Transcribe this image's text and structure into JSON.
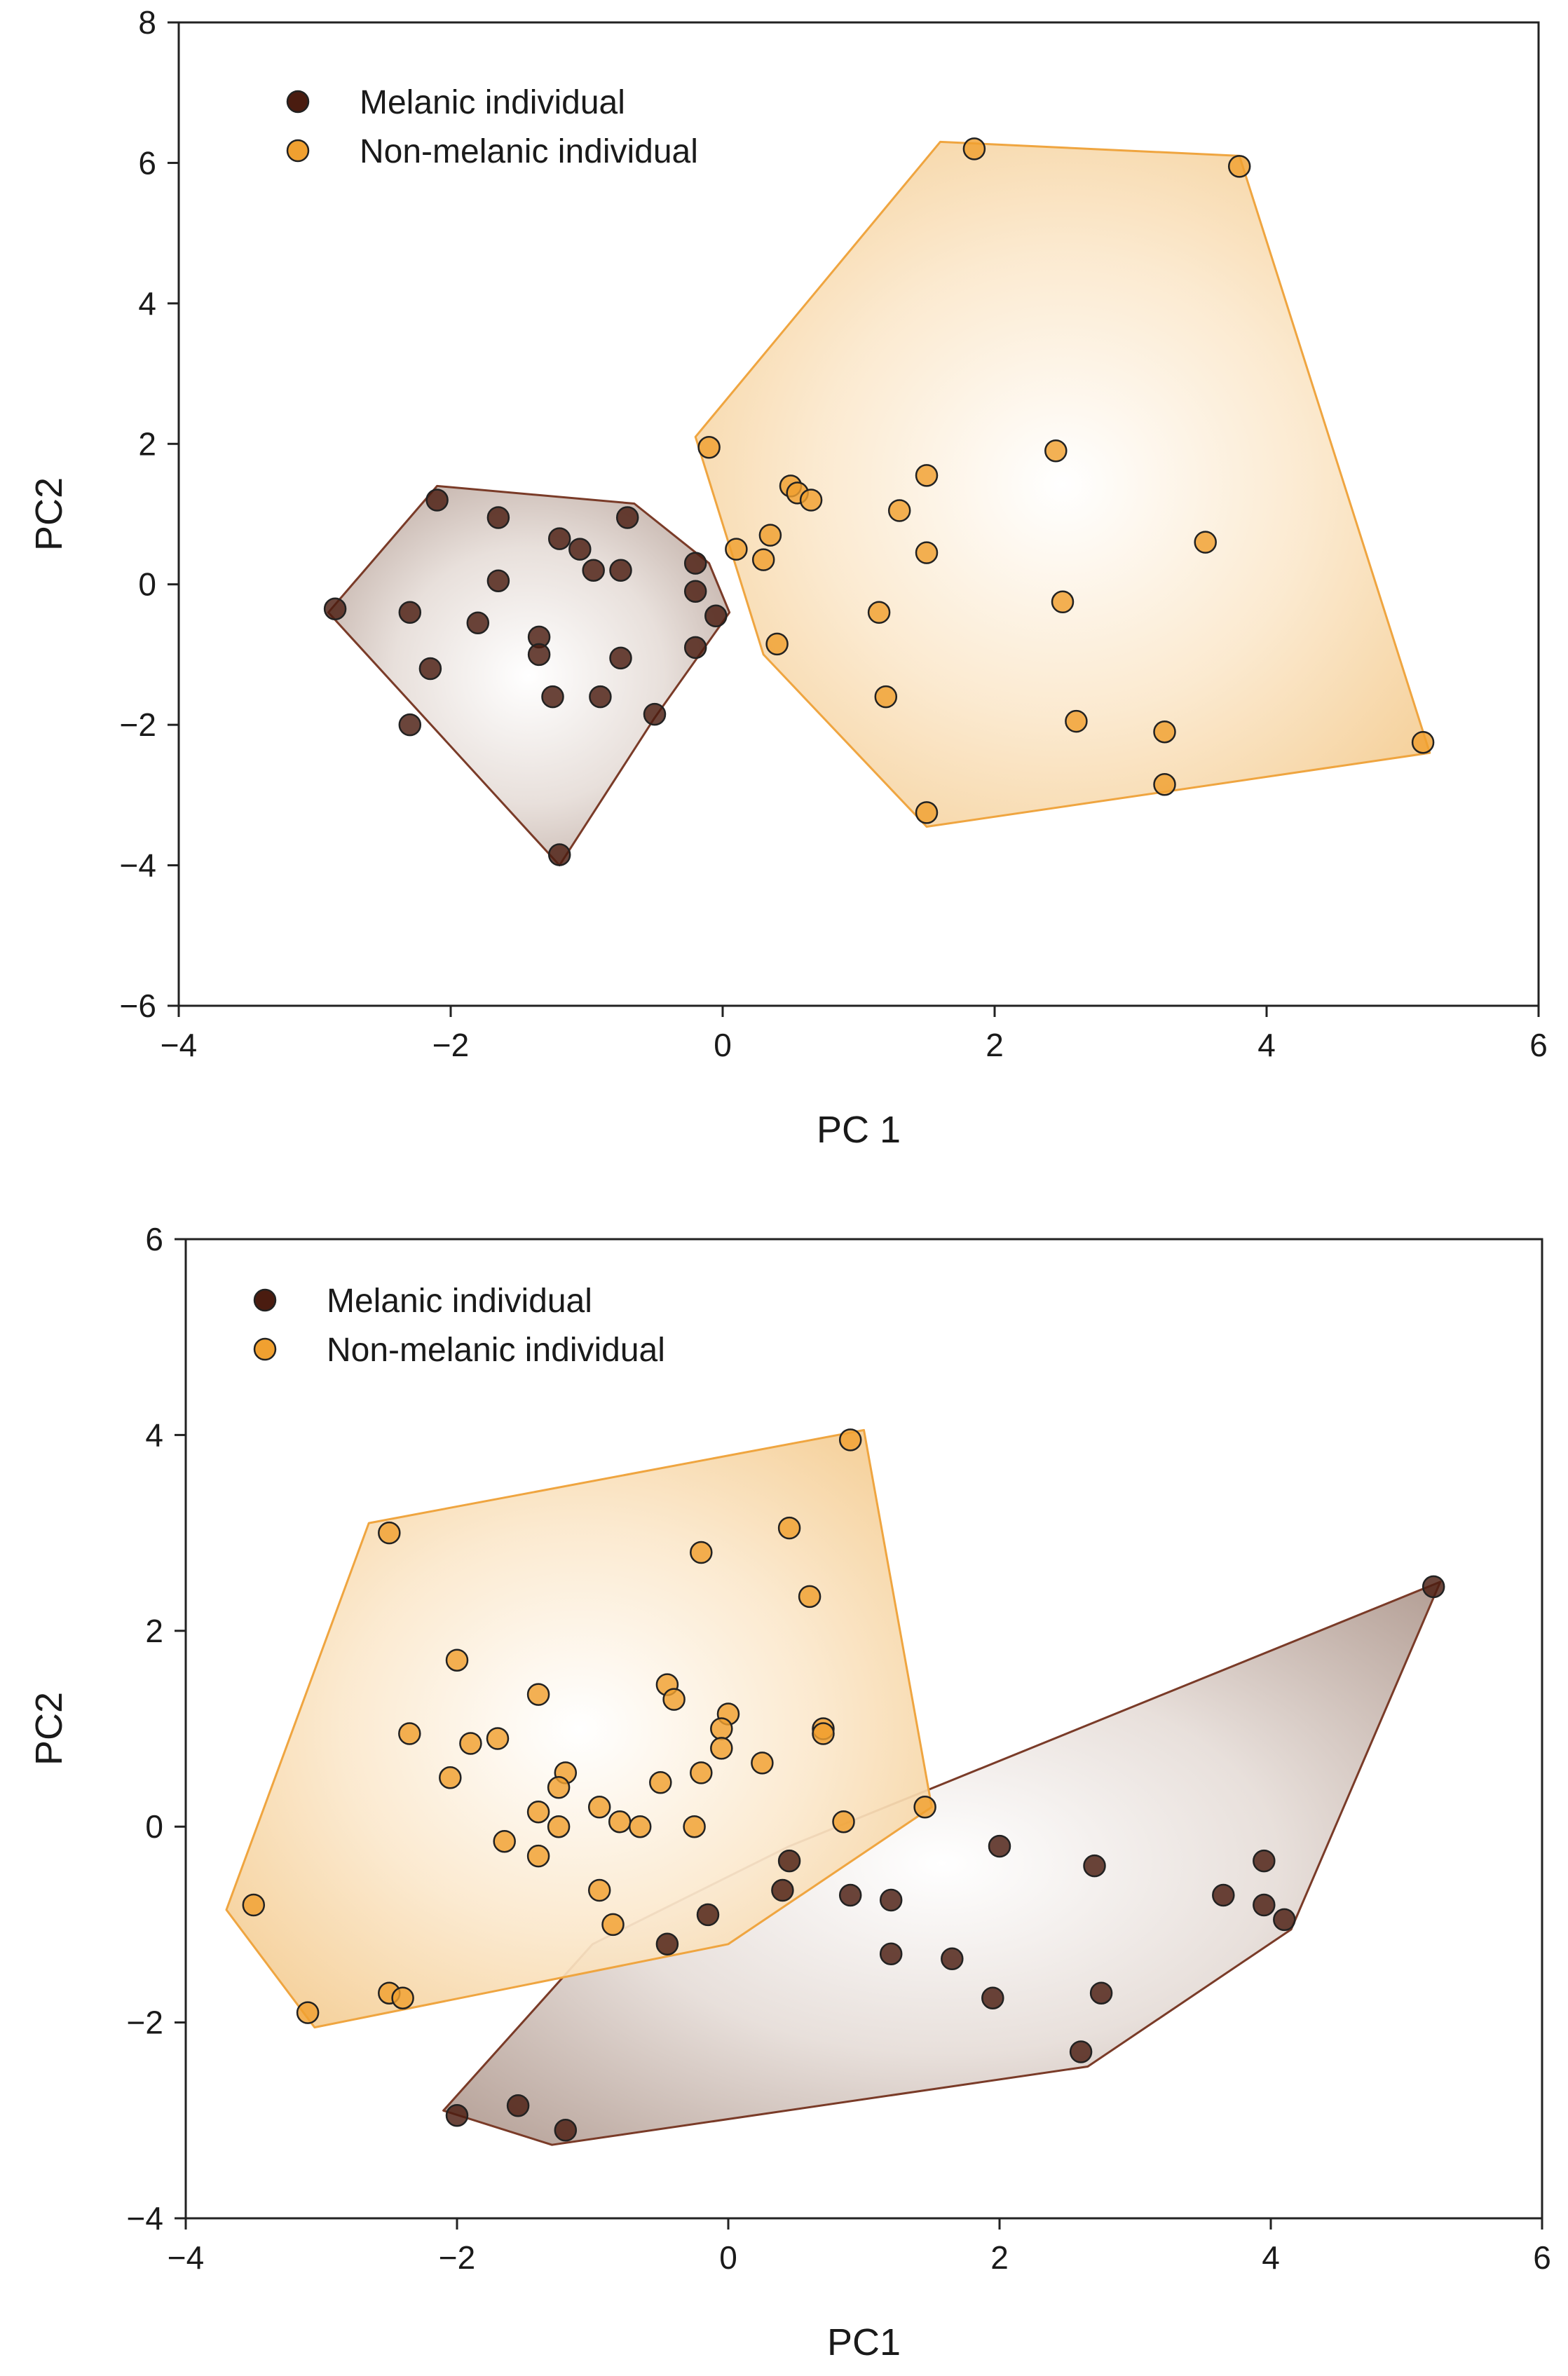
{
  "chart_data": [
    {
      "type": "scatter",
      "title": "",
      "xlabel": "PC 1",
      "ylabel": "PC2",
      "xlim": [
        -4,
        6
      ],
      "ylim": [
        -6,
        8
      ],
      "xticks": [
        -4,
        -2,
        0,
        2,
        4,
        6
      ],
      "yticks": [
        -6,
        -4,
        -2,
        0,
        2,
        4,
        6,
        8
      ],
      "xtick_labels": [
        "−4",
        "−2",
        "0",
        "2",
        "4",
        "6"
      ],
      "ytick_labels": [
        "−6",
        "−4",
        "−2",
        "0",
        "2",
        "4",
        "6",
        "8"
      ],
      "grid": false,
      "legend_position": "top-left",
      "series": [
        {
          "name": "Melanic individual",
          "color": "#4a1c10",
          "hull": [
            [
              -2.9,
              -0.4
            ],
            [
              -2.1,
              1.4
            ],
            [
              -0.65,
              1.15
            ],
            [
              -0.1,
              0.3
            ],
            [
              0.05,
              -0.4
            ],
            [
              -0.5,
              -1.9
            ],
            [
              -1.2,
              -4.0
            ]
          ],
          "points": [
            [
              -2.85,
              -0.35
            ],
            [
              -2.1,
              1.2
            ],
            [
              -1.65,
              0.95
            ],
            [
              -1.2,
              0.65
            ],
            [
              -1.05,
              0.5
            ],
            [
              -0.7,
              0.95
            ],
            [
              -0.95,
              0.2
            ],
            [
              -0.75,
              0.2
            ],
            [
              -0.2,
              0.3
            ],
            [
              -0.2,
              -0.1
            ],
            [
              -0.05,
              -0.45
            ],
            [
              -0.2,
              -0.9
            ],
            [
              -0.5,
              -1.85
            ],
            [
              -0.75,
              -1.05
            ],
            [
              -0.9,
              -1.6
            ],
            [
              -1.25,
              -1.6
            ],
            [
              -1.35,
              -0.75
            ],
            [
              -1.35,
              -1.0
            ],
            [
              -1.8,
              -0.55
            ],
            [
              -1.65,
              0.05
            ],
            [
              -2.3,
              -0.4
            ],
            [
              -2.15,
              -1.2
            ],
            [
              -2.3,
              -2.0
            ],
            [
              -1.2,
              -3.85
            ]
          ]
        },
        {
          "name": "Non-melanic individual",
          "color": "#f0a030",
          "hull": [
            [
              -0.2,
              2.1
            ],
            [
              1.6,
              6.3
            ],
            [
              3.8,
              6.1
            ],
            [
              5.2,
              -2.4
            ],
            [
              1.5,
              -3.45
            ],
            [
              0.3,
              -1.0
            ]
          ],
          "points": [
            [
              1.85,
              6.2
            ],
            [
              3.8,
              5.95
            ],
            [
              -0.1,
              1.95
            ],
            [
              0.1,
              0.5
            ],
            [
              0.3,
              0.35
            ],
            [
              0.35,
              0.7
            ],
            [
              0.5,
              1.4
            ],
            [
              0.55,
              1.3
            ],
            [
              0.65,
              1.2
            ],
            [
              0.4,
              -0.85
            ],
            [
              1.15,
              -0.4
            ],
            [
              1.3,
              1.05
            ],
            [
              1.5,
              1.55
            ],
            [
              1.5,
              0.45
            ],
            [
              1.2,
              -1.6
            ],
            [
              1.5,
              -3.25
            ],
            [
              2.45,
              1.9
            ],
            [
              2.5,
              -0.25
            ],
            [
              2.6,
              -1.95
            ],
            [
              3.25,
              -2.1
            ],
            [
              3.25,
              -2.85
            ],
            [
              3.55,
              0.6
            ],
            [
              5.15,
              -2.25
            ]
          ]
        }
      ]
    },
    {
      "type": "scatter",
      "title": "",
      "xlabel": "PC1",
      "ylabel": "PC2",
      "xlim": [
        -4,
        6
      ],
      "ylim": [
        -4,
        6
      ],
      "xticks": [
        -4,
        -2,
        0,
        2,
        4,
        6
      ],
      "yticks": [
        -4,
        -2,
        0,
        2,
        4,
        6
      ],
      "xtick_labels": [
        "−4",
        "−2",
        "0",
        "2",
        "4",
        "6"
      ],
      "ytick_labels": [
        "−4",
        "−2",
        "0",
        "2",
        "4",
        "6"
      ],
      "grid": false,
      "legend_position": "top-left",
      "series": [
        {
          "name": "Melanic individual",
          "color": "#4a1c10",
          "hull": [
            [
              -2.1,
              -2.9
            ],
            [
              -1.3,
              -3.25
            ],
            [
              2.65,
              -2.45
            ],
            [
              4.15,
              -1.05
            ],
            [
              5.25,
              2.5
            ],
            [
              0.45,
              -0.2
            ],
            [
              -1.0,
              -1.2
            ]
          ],
          "points": [
            [
              5.2,
              2.45
            ],
            [
              4.1,
              -0.95
            ],
            [
              3.95,
              -0.8
            ],
            [
              3.95,
              -0.35
            ],
            [
              3.65,
              -0.7
            ],
            [
              2.7,
              -0.4
            ],
            [
              2.75,
              -1.7
            ],
            [
              2.6,
              -2.3
            ],
            [
              2.0,
              -0.2
            ],
            [
              1.95,
              -1.75
            ],
            [
              1.65,
              -1.35
            ],
            [
              1.2,
              -0.75
            ],
            [
              1.2,
              -1.3
            ],
            [
              0.9,
              -0.7
            ],
            [
              0.45,
              -0.35
            ],
            [
              0.4,
              -0.65
            ],
            [
              -0.15,
              -0.9
            ],
            [
              -0.45,
              -1.2
            ],
            [
              -1.2,
              -3.1
            ],
            [
              -1.55,
              -2.85
            ],
            [
              -2.0,
              -2.95
            ]
          ]
        },
        {
          "name": "Non-melanic individual",
          "color": "#f0a030",
          "hull": [
            [
              -2.65,
              3.1
            ],
            [
              1.0,
              4.05
            ],
            [
              1.5,
              0.2
            ],
            [
              0.0,
              -1.2
            ],
            [
              -3.05,
              -2.05
            ],
            [
              -3.7,
              -0.85
            ]
          ],
          "points": [
            [
              0.9,
              3.95
            ],
            [
              -2.5,
              3.0
            ],
            [
              0.45,
              3.05
            ],
            [
              -0.2,
              2.8
            ],
            [
              0.6,
              2.35
            ],
            [
              -2.0,
              1.7
            ],
            [
              -1.4,
              1.35
            ],
            [
              -0.45,
              1.45
            ],
            [
              -0.4,
              1.3
            ],
            [
              0.0,
              1.15
            ],
            [
              -0.05,
              1.0
            ],
            [
              -0.05,
              0.8
            ],
            [
              -2.35,
              0.95
            ],
            [
              -1.9,
              0.85
            ],
            [
              -1.7,
              0.9
            ],
            [
              -1.2,
              0.55
            ],
            [
              -1.25,
              0.4
            ],
            [
              -2.05,
              0.5
            ],
            [
              -0.5,
              0.45
            ],
            [
              -0.2,
              0.55
            ],
            [
              0.25,
              0.65
            ],
            [
              0.7,
              1.0
            ],
            [
              0.7,
              0.95
            ],
            [
              1.45,
              0.2
            ],
            [
              -1.4,
              0.15
            ],
            [
              -0.95,
              0.2
            ],
            [
              -0.8,
              0.05
            ],
            [
              -0.65,
              0.0
            ],
            [
              -0.25,
              0.0
            ],
            [
              -1.25,
              0.0
            ],
            [
              -1.65,
              -0.15
            ],
            [
              -1.4,
              -0.3
            ],
            [
              0.85,
              0.05
            ],
            [
              -0.95,
              -0.65
            ],
            [
              -0.85,
              -1.0
            ],
            [
              -3.5,
              -0.8
            ],
            [
              -2.5,
              -1.7
            ],
            [
              -2.4,
              -1.75
            ],
            [
              -3.1,
              -1.9
            ]
          ]
        }
      ]
    }
  ]
}
